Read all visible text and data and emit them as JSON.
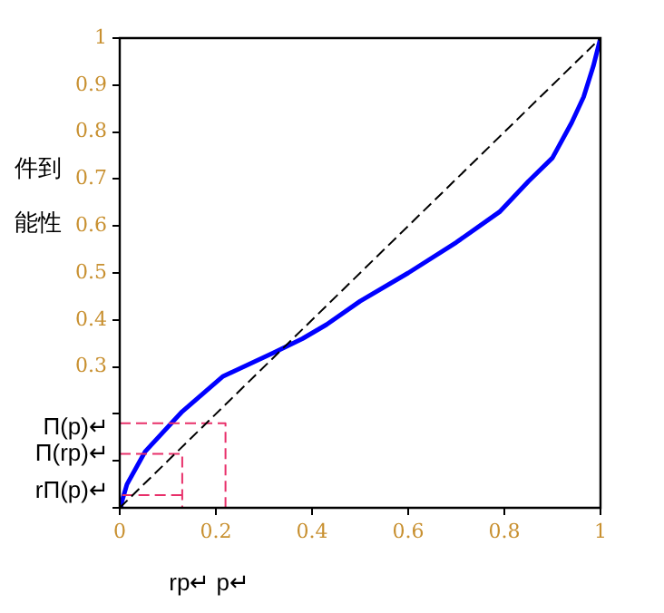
{
  "chart_data": {
    "type": "line",
    "annotations": [
      "件到",
      "能性",
      {
        "text": "Π(p)↵",
        "x": 0,
        "y": 0.18
      },
      {
        "text": "Π(rp)↵",
        "x": 0,
        "y": 0.115
      },
      {
        "text": "rΠ(p)↵",
        "x": 0,
        "y": 0.027
      },
      {
        "text": "rp↵",
        "x": 0.13,
        "y": 0
      },
      {
        "text": "p↵",
        "x": 0.22,
        "y": 0
      }
    ],
    "series": [
      {
        "color": "#000000",
        "line_style": "dashed",
        "x": [
          0,
          1
        ],
        "values": [
          0,
          1
        ]
      },
      {
        "color": "#e8306a",
        "line_style": "dashed",
        "x": [
          0,
          0.22,
          0.22
        ],
        "values": [
          0.18,
          0.18,
          0
        ]
      },
      {
        "color": "#e8306a",
        "line_style": "dashed",
        "x": [
          0,
          0.13,
          0.13
        ],
        "values": [
          0.115,
          0.115,
          0
        ]
      },
      {
        "color": "#e8306a",
        "line_style": "dashed",
        "x": [
          0.005,
          0.13
        ],
        "values": [
          0.027,
          0.027
        ]
      },
      {
        "color": "#0000ff",
        "line_style": "solid",
        "x": [
          0,
          0.003,
          0.015,
          0.053,
          0.13,
          0.215,
          0.32,
          0.38,
          0.43,
          0.5,
          0.6,
          0.7,
          0.79,
          0.85,
          0.9,
          0.94,
          0.965,
          0.985,
          1
        ],
        "values": [
          0,
          0.008,
          0.05,
          0.12,
          0.205,
          0.28,
          0.33,
          0.36,
          0.39,
          0.44,
          0.5,
          0.565,
          0.63,
          0.695,
          0.745,
          0.82,
          0.875,
          0.94,
          1
        ]
      }
    ],
    "xlim": [
      0,
      1
    ],
    "xticks": [
      0,
      0.2,
      0.4,
      0.6,
      0.8,
      1
    ],
    "ylim": [
      0,
      1
    ],
    "yticks": [
      {
        "value": 0,
        "label": null
      },
      {
        "value": 0.1,
        "label": null
      },
      {
        "value": 0.2,
        "label": null
      },
      0.3,
      0.4,
      0.5,
      0.6,
      0.7,
      0.8,
      0.9,
      1
    ],
    "grid": false,
    "legend": false,
    "marker": "none"
  }
}
